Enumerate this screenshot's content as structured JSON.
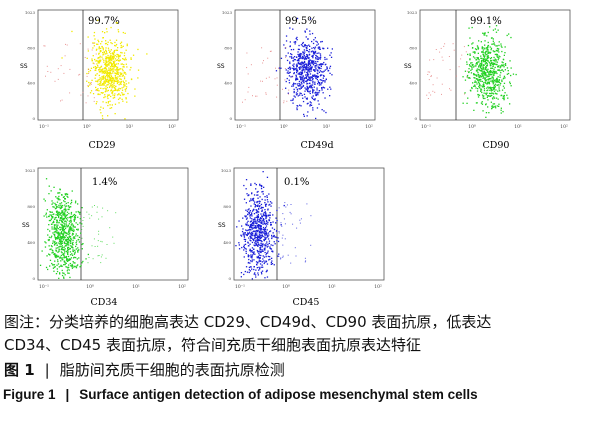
{
  "figure": {
    "panels": [
      {
        "marker": "CD29",
        "percent": "99.7%",
        "y_label": "SS",
        "color": "#f2ea00"
      },
      {
        "marker": "CD49d",
        "percent": "99.5%",
        "y_label": "SS",
        "color": "#1a1fd8"
      },
      {
        "marker": "CD90",
        "percent": "99.1%",
        "y_label": "SS",
        "color": "#22d022"
      },
      {
        "marker": "CD34",
        "percent": "1.4%",
        "y_label": "SS",
        "color": "#22d022"
      },
      {
        "marker": "CD45",
        "percent": "0.1%",
        "y_label": "SS",
        "color": "#1a1fd8"
      }
    ],
    "x_ticks": [
      "10⁻¹",
      "10⁰",
      "10¹",
      "10²"
    ],
    "y_ticks": [
      "1023",
      "800",
      "400",
      "0"
    ]
  },
  "caption": {
    "note_line1": "图注：分类培养的细胞高表达 CD29、CD49d、CD90 表面抗原，低表达",
    "note_line2": "CD34、CD45 表面抗原，符合间充质干细胞表面抗原表达特征",
    "cn_label": "图 1",
    "cn_separator": "|",
    "cn_title": "脂肪间充质干细胞的表面抗原检测",
    "en_label": "Figure 1",
    "en_separator": "|",
    "en_title": "Surface antigen detection of adipose mesenchymal stem cells"
  }
}
